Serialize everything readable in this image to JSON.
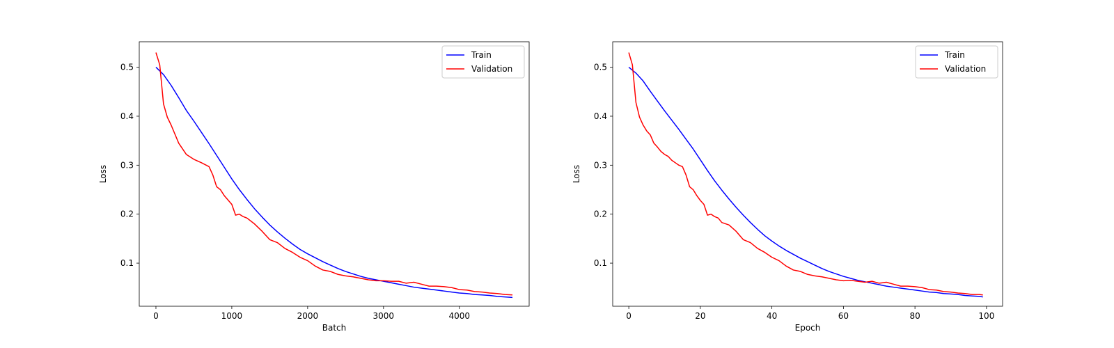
{
  "chart_data": [
    {
      "type": "line",
      "xlabel": "Batch",
      "ylabel": "Loss",
      "xlim": [
        -220,
        4920
      ],
      "ylim": [
        0.012,
        0.552
      ],
      "xticks": [
        0,
        1000,
        2000,
        3000,
        4000
      ],
      "xtick_labels": [
        "0",
        "1000",
        "2000",
        "3000",
        "4000"
      ],
      "yticks": [
        0.1,
        0.2,
        0.3,
        0.4,
        0.5
      ],
      "ytick_labels": [
        "0.1",
        "0.2",
        "0.3",
        "0.4",
        "0.5"
      ],
      "grid": false,
      "legend_position": "top-right",
      "series": [
        {
          "name": "Train",
          "color": "#0000ff",
          "x": [
            0,
            100,
            200,
            300,
            400,
            500,
            600,
            700,
            800,
            900,
            1000,
            1100,
            1200,
            1300,
            1400,
            1500,
            1600,
            1700,
            1800,
            1900,
            2000,
            2100,
            2200,
            2300,
            2400,
            2500,
            2600,
            2700,
            2800,
            2900,
            3000,
            3100,
            3200,
            3300,
            3400,
            3500,
            3600,
            3700,
            3800,
            3900,
            4000,
            4100,
            4200,
            4300,
            4400,
            4500,
            4600,
            4700
          ],
          "y": [
            0.5,
            0.485,
            0.463,
            0.438,
            0.412,
            0.39,
            0.367,
            0.344,
            0.32,
            0.296,
            0.272,
            0.25,
            0.23,
            0.211,
            0.194,
            0.178,
            0.164,
            0.151,
            0.139,
            0.128,
            0.119,
            0.111,
            0.103,
            0.096,
            0.089,
            0.083,
            0.078,
            0.073,
            0.069,
            0.066,
            0.063,
            0.06,
            0.057,
            0.054,
            0.051,
            0.049,
            0.047,
            0.045,
            0.043,
            0.041,
            0.039,
            0.038,
            0.036,
            0.035,
            0.034,
            0.032,
            0.031,
            0.03
          ]
        },
        {
          "name": "Validation",
          "color": "#ff0000",
          "x": [
            0,
            50,
            100,
            150,
            200,
            300,
            400,
            500,
            600,
            700,
            750,
            800,
            850,
            900,
            1000,
            1050,
            1100,
            1150,
            1200,
            1300,
            1400,
            1500,
            1600,
            1700,
            1800,
            1900,
            2000,
            2100,
            2200,
            2300,
            2400,
            2500,
            2600,
            2700,
            2800,
            2900,
            3000,
            3100,
            3200,
            3300,
            3400,
            3500,
            3600,
            3700,
            3800,
            3900,
            4000,
            4100,
            4200,
            4300,
            4400,
            4500,
            4600,
            4700
          ],
          "y": [
            0.53,
            0.505,
            0.425,
            0.398,
            0.382,
            0.345,
            0.322,
            0.312,
            0.305,
            0.297,
            0.28,
            0.256,
            0.25,
            0.238,
            0.22,
            0.198,
            0.2,
            0.195,
            0.192,
            0.18,
            0.165,
            0.148,
            0.142,
            0.13,
            0.122,
            0.112,
            0.105,
            0.094,
            0.086,
            0.083,
            0.077,
            0.074,
            0.072,
            0.069,
            0.066,
            0.064,
            0.064,
            0.063,
            0.063,
            0.059,
            0.061,
            0.057,
            0.053,
            0.053,
            0.052,
            0.05,
            0.046,
            0.045,
            0.042,
            0.041,
            0.039,
            0.038,
            0.036,
            0.035
          ]
        }
      ]
    },
    {
      "type": "line",
      "xlabel": "Epoch",
      "ylabel": "Loss",
      "xlim": [
        -4.5,
        104.5
      ],
      "ylim": [
        0.012,
        0.552
      ],
      "xticks": [
        0,
        20,
        40,
        60,
        80,
        100
      ],
      "xtick_labels": [
        "0",
        "20",
        "40",
        "60",
        "80",
        "100"
      ],
      "yticks": [
        0.1,
        0.2,
        0.3,
        0.4,
        0.5
      ],
      "ytick_labels": [
        "0.1",
        "0.2",
        "0.3",
        "0.4",
        "0.5"
      ],
      "grid": false,
      "legend_position": "top-right",
      "series": [
        {
          "name": "Train",
          "color": "#0000ff",
          "x": [
            0,
            2,
            4,
            6,
            8,
            10,
            12,
            14,
            16,
            18,
            20,
            22,
            24,
            26,
            28,
            30,
            32,
            34,
            36,
            38,
            40,
            42,
            44,
            46,
            48,
            50,
            52,
            54,
            56,
            58,
            60,
            62,
            64,
            66,
            68,
            70,
            72,
            74,
            76,
            78,
            80,
            82,
            84,
            86,
            88,
            90,
            92,
            94,
            96,
            98,
            99
          ],
          "y": [
            0.5,
            0.488,
            0.472,
            0.451,
            0.431,
            0.411,
            0.392,
            0.373,
            0.353,
            0.333,
            0.311,
            0.289,
            0.268,
            0.249,
            0.231,
            0.214,
            0.198,
            0.183,
            0.169,
            0.156,
            0.145,
            0.135,
            0.126,
            0.118,
            0.11,
            0.103,
            0.096,
            0.089,
            0.083,
            0.078,
            0.073,
            0.069,
            0.065,
            0.062,
            0.059,
            0.056,
            0.053,
            0.051,
            0.049,
            0.047,
            0.045,
            0.043,
            0.041,
            0.04,
            0.038,
            0.037,
            0.036,
            0.034,
            0.033,
            0.032,
            0.031
          ]
        },
        {
          "name": "Validation",
          "color": "#ff0000",
          "x": [
            0,
            1,
            2,
            3,
            4,
            5,
            6,
            7,
            8,
            9,
            10,
            11,
            12,
            13,
            14,
            15,
            16,
            17,
            18,
            19,
            20,
            21,
            22,
            23,
            24,
            25,
            26,
            28,
            30,
            32,
            33,
            34,
            36,
            38,
            40,
            42,
            44,
            46,
            48,
            50,
            52,
            54,
            56,
            58,
            60,
            62,
            64,
            66,
            68,
            70,
            71,
            72,
            74,
            76,
            78,
            80,
            82,
            84,
            86,
            88,
            90,
            92,
            94,
            96,
            98,
            99
          ],
          "y": [
            0.53,
            0.505,
            0.428,
            0.398,
            0.382,
            0.37,
            0.362,
            0.345,
            0.337,
            0.328,
            0.322,
            0.318,
            0.31,
            0.305,
            0.3,
            0.297,
            0.28,
            0.256,
            0.25,
            0.238,
            0.228,
            0.22,
            0.198,
            0.2,
            0.195,
            0.192,
            0.183,
            0.178,
            0.165,
            0.148,
            0.145,
            0.142,
            0.13,
            0.122,
            0.112,
            0.105,
            0.094,
            0.086,
            0.083,
            0.077,
            0.074,
            0.072,
            0.069,
            0.066,
            0.064,
            0.065,
            0.063,
            0.061,
            0.063,
            0.059,
            0.06,
            0.061,
            0.057,
            0.053,
            0.053,
            0.052,
            0.05,
            0.046,
            0.045,
            0.042,
            0.041,
            0.039,
            0.038,
            0.036,
            0.036,
            0.035
          ]
        }
      ]
    }
  ]
}
